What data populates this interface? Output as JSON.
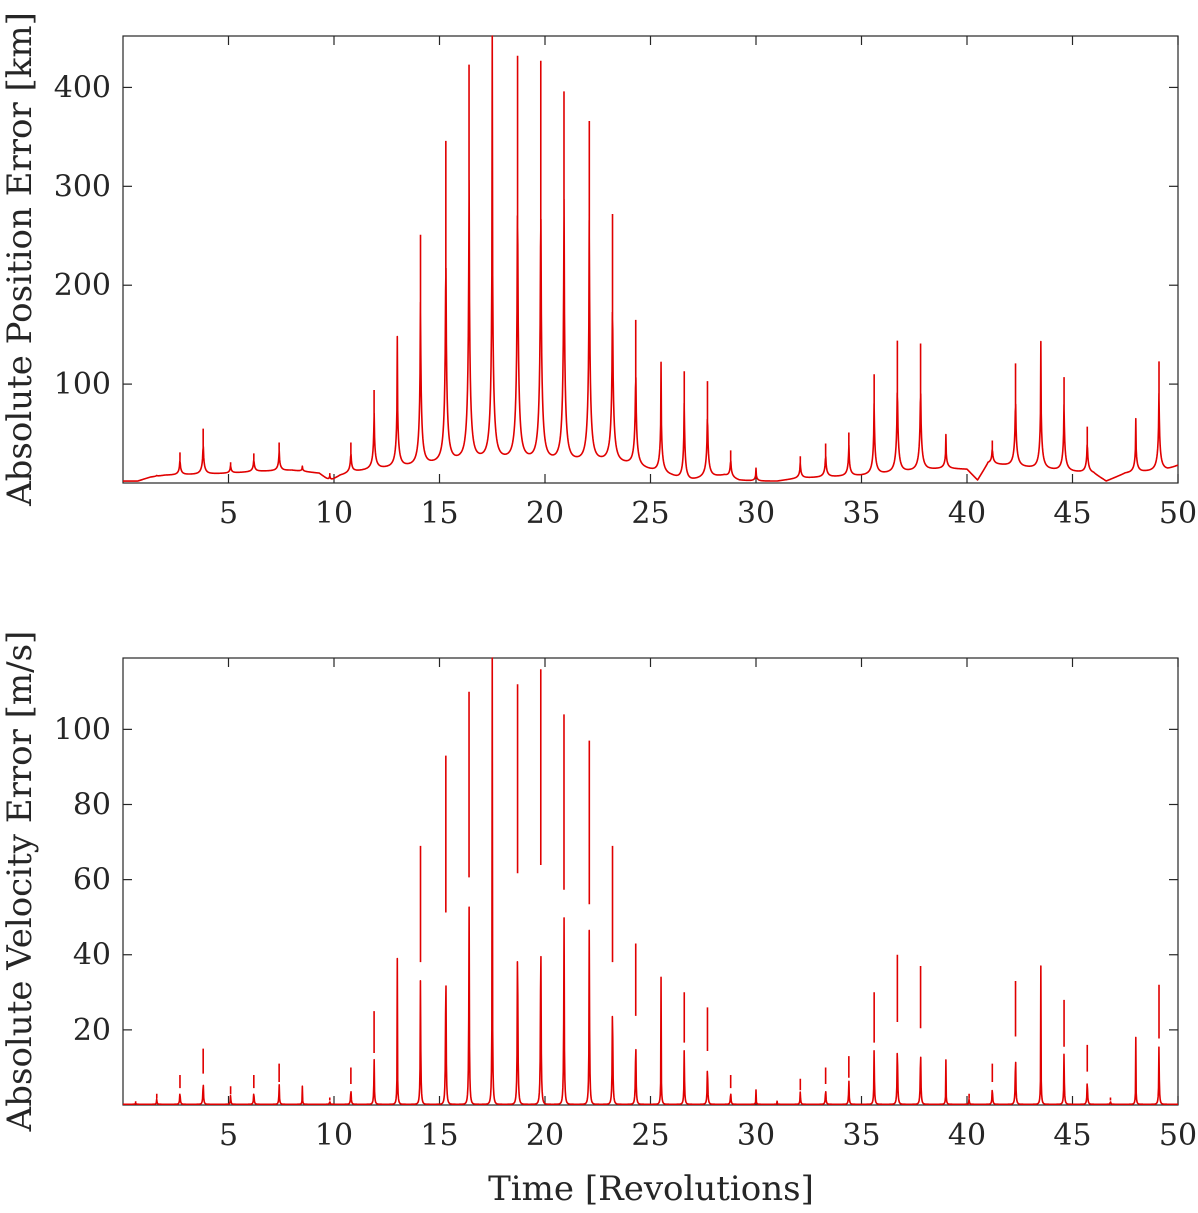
{
  "chart_data": [
    {
      "type": "line",
      "panel": "top",
      "title": "",
      "xlabel": "",
      "ylabel": "Absolute Position Error [km]",
      "xlim": [
        0,
        50
      ],
      "ylim": [
        0,
        452
      ],
      "xticks": [
        5,
        10,
        15,
        20,
        25,
        30,
        35,
        40,
        45,
        50
      ],
      "yticks": [
        100,
        200,
        300,
        400
      ],
      "color": "#e00000",
      "baseline": [
        {
          "x": 0.0,
          "y": 2
        },
        {
          "x": 0.7,
          "y": 2
        },
        {
          "x": 1.3,
          "y": 6
        },
        {
          "x": 2.0,
          "y": 8
        },
        {
          "x": 3.5,
          "y": 9
        },
        {
          "x": 5.0,
          "y": 10
        },
        {
          "x": 6.5,
          "y": 12
        },
        {
          "x": 8.0,
          "y": 13
        },
        {
          "x": 9.3,
          "y": 10
        },
        {
          "x": 9.8,
          "y": 2
        },
        {
          "x": 10.3,
          "y": 8
        },
        {
          "x": 11.0,
          "y": 12
        },
        {
          "x": 12.0,
          "y": 15
        },
        {
          "x": 13.0,
          "y": 17
        },
        {
          "x": 14.0,
          "y": 19
        },
        {
          "x": 15.0,
          "y": 22
        },
        {
          "x": 16.0,
          "y": 25
        },
        {
          "x": 17.0,
          "y": 26
        },
        {
          "x": 18.0,
          "y": 26
        },
        {
          "x": 19.0,
          "y": 26
        },
        {
          "x": 20.0,
          "y": 25
        },
        {
          "x": 21.0,
          "y": 24
        },
        {
          "x": 22.0,
          "y": 24
        },
        {
          "x": 23.0,
          "y": 24
        },
        {
          "x": 24.0,
          "y": 20
        },
        {
          "x": 25.0,
          "y": 14
        },
        {
          "x": 26.0,
          "y": 8
        },
        {
          "x": 26.7,
          "y": 2
        },
        {
          "x": 27.5,
          "y": 6
        },
        {
          "x": 28.5,
          "y": 8
        },
        {
          "x": 29.2,
          "y": 3
        },
        {
          "x": 30.0,
          "y": 2
        },
        {
          "x": 31.0,
          "y": 2
        },
        {
          "x": 32.0,
          "y": 5
        },
        {
          "x": 33.0,
          "y": 6
        },
        {
          "x": 34.0,
          "y": 7
        },
        {
          "x": 35.0,
          "y": 8
        },
        {
          "x": 36.0,
          "y": 10
        },
        {
          "x": 37.0,
          "y": 12
        },
        {
          "x": 38.0,
          "y": 14
        },
        {
          "x": 39.0,
          "y": 15
        },
        {
          "x": 40.0,
          "y": 14
        },
        {
          "x": 40.5,
          "y": 3
        },
        {
          "x": 41.0,
          "y": 20
        },
        {
          "x": 42.0,
          "y": 18
        },
        {
          "x": 43.0,
          "y": 16
        },
        {
          "x": 44.0,
          "y": 14
        },
        {
          "x": 45.0,
          "y": 12
        },
        {
          "x": 46.0,
          "y": 10
        },
        {
          "x": 46.6,
          "y": 2
        },
        {
          "x": 47.5,
          "y": 10
        },
        {
          "x": 48.5,
          "y": 12
        },
        {
          "x": 49.5,
          "y": 14
        },
        {
          "x": 50.0,
          "y": 18
        }
      ],
      "peaks": [
        {
          "x": 1.6,
          "y": 8
        },
        {
          "x": 2.7,
          "y": 31
        },
        {
          "x": 3.8,
          "y": 55
        },
        {
          "x": 5.1,
          "y": 21
        },
        {
          "x": 6.2,
          "y": 30
        },
        {
          "x": 7.4,
          "y": 41
        },
        {
          "x": 8.5,
          "y": 17
        },
        {
          "x": 9.8,
          "y": 10
        },
        {
          "x": 10.8,
          "y": 41
        },
        {
          "x": 11.9,
          "y": 94
        },
        {
          "x": 13.0,
          "y": 148
        },
        {
          "x": 14.1,
          "y": 251
        },
        {
          "x": 15.3,
          "y": 346
        },
        {
          "x": 16.4,
          "y": 423
        },
        {
          "x": 17.5,
          "y": 452
        },
        {
          "x": 18.7,
          "y": 432
        },
        {
          "x": 19.8,
          "y": 427
        },
        {
          "x": 20.9,
          "y": 396
        },
        {
          "x": 22.1,
          "y": 366
        },
        {
          "x": 23.2,
          "y": 272
        },
        {
          "x": 24.3,
          "y": 165
        },
        {
          "x": 25.5,
          "y": 122
        },
        {
          "x": 26.6,
          "y": 113
        },
        {
          "x": 27.7,
          "y": 103
        },
        {
          "x": 28.8,
          "y": 33
        },
        {
          "x": 30.0,
          "y": 15
        },
        {
          "x": 32.1,
          "y": 27
        },
        {
          "x": 33.3,
          "y": 40
        },
        {
          "x": 34.4,
          "y": 51
        },
        {
          "x": 35.6,
          "y": 110
        },
        {
          "x": 36.7,
          "y": 144
        },
        {
          "x": 37.8,
          "y": 141
        },
        {
          "x": 39.0,
          "y": 49
        },
        {
          "x": 41.2,
          "y": 43
        },
        {
          "x": 42.3,
          "y": 121
        },
        {
          "x": 43.5,
          "y": 143
        },
        {
          "x": 44.6,
          "y": 107
        },
        {
          "x": 45.7,
          "y": 57
        },
        {
          "x": 48.0,
          "y": 65
        },
        {
          "x": 49.1,
          "y": 123
        }
      ]
    },
    {
      "type": "line",
      "panel": "bottom",
      "title": "",
      "xlabel": "Time [Revolutions]",
      "ylabel": "Absolute Velocity Error [m/s]",
      "xlim": [
        0,
        50
      ],
      "ylim": [
        0,
        119
      ],
      "xticks": [
        5,
        10,
        15,
        20,
        25,
        30,
        35,
        40,
        45,
        50
      ],
      "yticks": [
        20,
        40,
        60,
        80,
        100
      ],
      "color": "#e00000",
      "baseline_value": 0.2,
      "peaks": [
        {
          "x": 0.6,
          "y": 1
        },
        {
          "x": 1.6,
          "y": 3
        },
        {
          "x": 2.7,
          "y": 8
        },
        {
          "x": 3.8,
          "y": 15
        },
        {
          "x": 5.1,
          "y": 5
        },
        {
          "x": 6.2,
          "y": 8
        },
        {
          "x": 7.4,
          "y": 11
        },
        {
          "x": 8.5,
          "y": 5
        },
        {
          "x": 9.8,
          "y": 2
        },
        {
          "x": 10.8,
          "y": 10
        },
        {
          "x": 11.9,
          "y": 25
        },
        {
          "x": 13.0,
          "y": 39
        },
        {
          "x": 14.1,
          "y": 69
        },
        {
          "x": 15.3,
          "y": 93
        },
        {
          "x": 16.4,
          "y": 110
        },
        {
          "x": 17.5,
          "y": 119
        },
        {
          "x": 18.7,
          "y": 112
        },
        {
          "x": 19.8,
          "y": 116
        },
        {
          "x": 20.9,
          "y": 104
        },
        {
          "x": 22.1,
          "y": 97
        },
        {
          "x": 23.2,
          "y": 69
        },
        {
          "x": 24.3,
          "y": 43
        },
        {
          "x": 25.5,
          "y": 34
        },
        {
          "x": 26.6,
          "y": 30
        },
        {
          "x": 27.7,
          "y": 26
        },
        {
          "x": 28.8,
          "y": 8
        },
        {
          "x": 30.0,
          "y": 4
        },
        {
          "x": 31.0,
          "y": 1
        },
        {
          "x": 32.1,
          "y": 7
        },
        {
          "x": 33.3,
          "y": 10
        },
        {
          "x": 34.4,
          "y": 13
        },
        {
          "x": 35.6,
          "y": 30
        },
        {
          "x": 36.7,
          "y": 40
        },
        {
          "x": 37.8,
          "y": 37
        },
        {
          "x": 39.0,
          "y": 12
        },
        {
          "x": 40.1,
          "y": 3
        },
        {
          "x": 41.2,
          "y": 11
        },
        {
          "x": 42.3,
          "y": 33
        },
        {
          "x": 43.5,
          "y": 37
        },
        {
          "x": 44.6,
          "y": 28
        },
        {
          "x": 45.7,
          "y": 16
        },
        {
          "x": 46.8,
          "y": 2
        },
        {
          "x": 48.0,
          "y": 18
        },
        {
          "x": 49.1,
          "y": 32
        }
      ]
    }
  ]
}
